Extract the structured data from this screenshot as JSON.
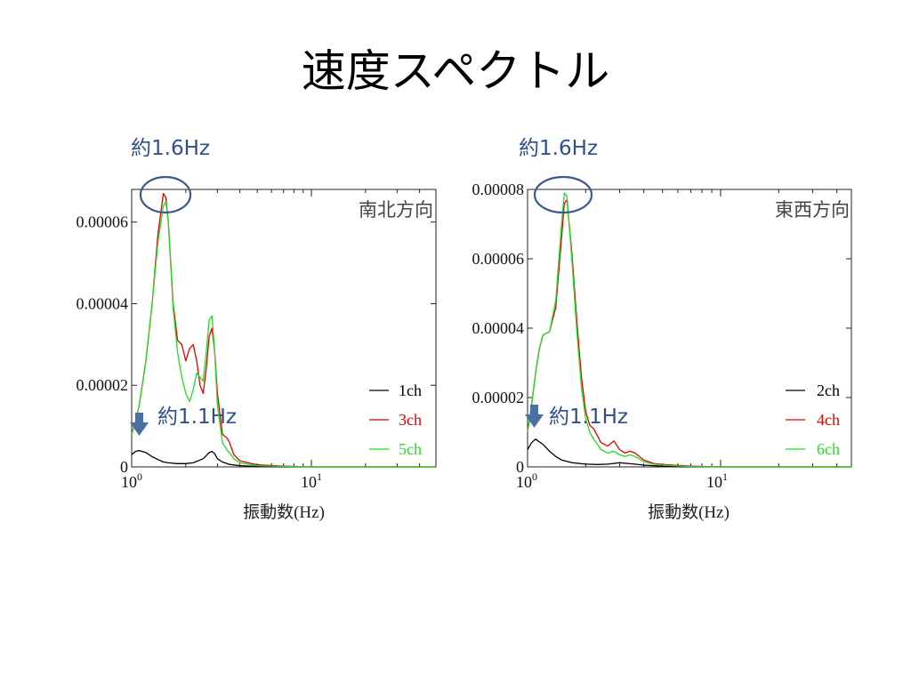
{
  "title": "速度スペクトル",
  "colors": {
    "ch_black": "#000000",
    "ch_red": "#e00000",
    "ch_green": "#22dd22",
    "annotation": "#2f4f8a"
  },
  "panels": [
    {
      "peak_label": "約1.6Hz",
      "low_label": "約1.1Hz",
      "arrow_icon": "down-arrow-icon",
      "highlight": "circle-around-peak"
    },
    {
      "peak_label": "約1.6Hz",
      "low_label": "約1.1Hz",
      "arrow_icon": "down-arrow-icon",
      "highlight": "circle-around-peak"
    }
  ],
  "chart_data": [
    {
      "type": "line",
      "direction_label": "南北方向",
      "xlabel": "振動数(Hz)",
      "ylabel": "",
      "xscale": "log",
      "xlim": [
        1,
        50
      ],
      "ylim": [
        0,
        6.8e-05
      ],
      "xtick_labels": [
        [
          "10",
          "0"
        ],
        [
          "10",
          "1"
        ]
      ],
      "yticks": [
        0,
        2e-05,
        4e-05,
        6e-05
      ],
      "ytick_labels": [
        "0",
        "0.00002",
        "0.00004",
        "0.00006"
      ],
      "legend_position": "right",
      "series": [
        {
          "name": "1ch",
          "color": "#000000",
          "x": [
            1.0,
            1.05,
            1.1,
            1.2,
            1.3,
            1.4,
            1.5,
            1.6,
            1.8,
            2.0,
            2.2,
            2.5,
            2.7,
            2.8,
            2.9,
            3.0,
            3.2,
            3.5,
            4,
            5,
            7,
            10,
            20,
            50
          ],
          "y": [
            3e-06,
            3.8e-06,
            4e-06,
            3.5e-06,
            2.5e-06,
            1.8e-06,
            1.2e-06,
            1e-06,
            8e-07,
            8e-07,
            1e-06,
            2e-06,
            3.5e-06,
            3.8e-06,
            3.2e-06,
            2e-06,
            1.2e-06,
            6e-07,
            3e-07,
            1e-07,
            0,
            0,
            0,
            0
          ]
        },
        {
          "name": "3ch",
          "color": "#e00000",
          "x": [
            1.0,
            1.05,
            1.1,
            1.2,
            1.3,
            1.4,
            1.5,
            1.55,
            1.6,
            1.7,
            1.8,
            1.9,
            2.0,
            2.1,
            2.2,
            2.3,
            2.4,
            2.5,
            2.6,
            2.7,
            2.8,
            2.9,
            3.0,
            3.2,
            3.4,
            3.5,
            3.7,
            4,
            5,
            7,
            10,
            20,
            50
          ],
          "y": [
            8e-06,
            1.1e-05,
            1.5e-05,
            2.6e-05,
            4e-05,
            5.7e-05,
            6.7e-05,
            6.6e-05,
            6e-05,
            4e-05,
            3.1e-05,
            3e-05,
            2.6e-05,
            2.9e-05,
            3e-05,
            2.6e-05,
            2e-05,
            1.8e-05,
            2.4e-05,
            3.2e-05,
            3.4e-05,
            2.8e-05,
            1.8e-05,
            8e-06,
            7e-06,
            6e-06,
            3e-06,
            1.5e-06,
            5e-07,
            2e-07,
            0,
            0,
            0
          ]
        },
        {
          "name": "5ch",
          "color": "#22dd22",
          "x": [
            1.0,
            1.05,
            1.1,
            1.2,
            1.3,
            1.4,
            1.5,
            1.55,
            1.6,
            1.7,
            1.8,
            1.9,
            2.0,
            2.1,
            2.2,
            2.3,
            2.4,
            2.5,
            2.6,
            2.7,
            2.8,
            2.9,
            3.0,
            3.2,
            3.4,
            3.5,
            3.7,
            4,
            5,
            7,
            10,
            20,
            50
          ],
          "y": [
            8e-06,
            1.1e-05,
            1.5e-05,
            2.6e-05,
            4e-05,
            5.5e-05,
            6.4e-05,
            6.5e-05,
            6e-05,
            3.9e-05,
            2.8e-05,
            2.2e-05,
            1.8e-05,
            1.6e-05,
            1.9e-05,
            2.3e-05,
            2.2e-05,
            2.1e-05,
            2.8e-05,
            3.6e-05,
            3.7e-05,
            2.8e-05,
            1.5e-05,
            6e-06,
            4e-06,
            3.5e-06,
            2e-06,
            1e-06,
            3e-07,
            1e-07,
            0,
            0,
            0
          ]
        }
      ]
    },
    {
      "type": "line",
      "direction_label": "東西方向",
      "xlabel": "振動数(Hz)",
      "ylabel": "",
      "xscale": "log",
      "xlim": [
        1,
        50
      ],
      "ylim": [
        0,
        8e-05
      ],
      "xtick_labels": [
        [
          "10",
          "0"
        ],
        [
          "10",
          "1"
        ]
      ],
      "yticks": [
        0,
        2e-05,
        4e-05,
        6e-05,
        8e-05
      ],
      "ytick_labels": [
        "0",
        "0.00002",
        "0.00004",
        "0.00006",
        "0.00008"
      ],
      "legend_position": "right",
      "series": [
        {
          "name": "2ch",
          "color": "#000000",
          "x": [
            1.0,
            1.05,
            1.1,
            1.2,
            1.3,
            1.4,
            1.5,
            1.7,
            2.0,
            2.3,
            2.6,
            2.8,
            3.0,
            3.3,
            3.6,
            4,
            5,
            7,
            10,
            20,
            50
          ],
          "y": [
            5e-06,
            7e-06,
            8e-06,
            6.5e-06,
            4.5e-06,
            3e-06,
            2e-06,
            1.2e-06,
            8e-07,
            7e-07,
            8e-07,
            1e-06,
            1.2e-06,
            1e-06,
            8e-07,
            5e-07,
            2e-07,
            0,
            0,
            0,
            0
          ]
        },
        {
          "name": "4ch",
          "color": "#e00000",
          "x": [
            1.0,
            1.05,
            1.1,
            1.15,
            1.2,
            1.3,
            1.4,
            1.5,
            1.55,
            1.6,
            1.7,
            1.8,
            1.9,
            2.0,
            2.1,
            2.2,
            2.4,
            2.6,
            2.8,
            3.0,
            3.2,
            3.4,
            3.6,
            4,
            4.5,
            5,
            7,
            10,
            20,
            50
          ],
          "y": [
            1e-05,
            1.8e-05,
            2.7e-05,
            3.4e-05,
            3.8e-05,
            3.9e-05,
            4.6e-05,
            6.6e-05,
            7.6e-05,
            7.7e-05,
            6.1e-05,
            4.2e-05,
            2.6e-05,
            1.6e-05,
            1.2e-05,
            1.1e-05,
            7e-06,
            6e-06,
            7.5e-06,
            5e-06,
            4e-06,
            4.5e-06,
            4e-06,
            2e-06,
            1e-06,
            7e-07,
            2e-07,
            0,
            0,
            0
          ]
        },
        {
          "name": "6ch",
          "color": "#22dd22",
          "x": [
            1.0,
            1.05,
            1.1,
            1.15,
            1.2,
            1.3,
            1.4,
            1.5,
            1.55,
            1.6,
            1.7,
            1.8,
            1.9,
            2.0,
            2.1,
            2.2,
            2.4,
            2.6,
            2.8,
            3.0,
            3.2,
            3.4,
            3.6,
            4,
            4.5,
            5,
            7,
            10,
            20,
            50
          ],
          "y": [
            1e-05,
            1.8e-05,
            2.7e-05,
            3.4e-05,
            3.8e-05,
            3.9e-05,
            4.8e-05,
            7e-05,
            7.9e-05,
            7.8e-05,
            5.9e-05,
            3.9e-05,
            2.3e-05,
            1.4e-05,
            1e-05,
            8e-06,
            5e-06,
            4e-06,
            4.5e-06,
            3.5e-06,
            3e-06,
            3.5e-06,
            3e-06,
            1.5e-06,
            8e-07,
            5e-07,
            1e-07,
            0,
            0,
            0
          ]
        }
      ]
    }
  ]
}
